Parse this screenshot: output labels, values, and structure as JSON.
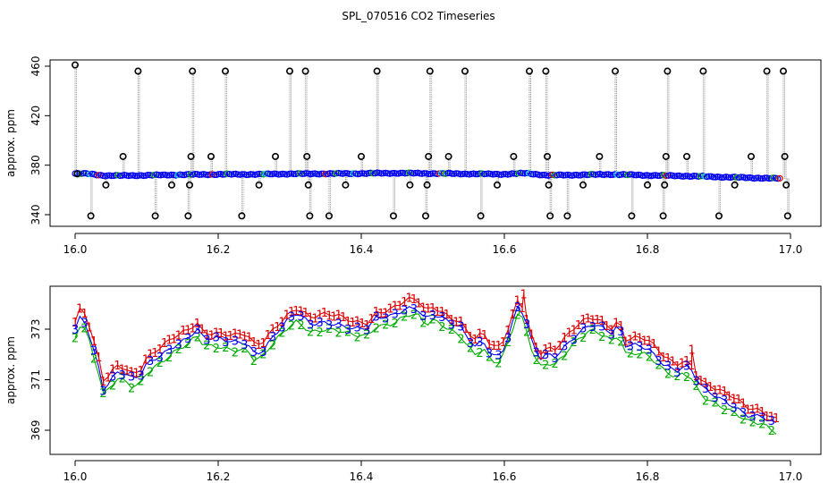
{
  "figure": {
    "title": "SPL_070516  CO2 Timeseries"
  },
  "chart_data": [
    {
      "type": "scatter",
      "title": "SPL_070516  CO2 Timeseries",
      "xlabel": "",
      "ylabel": "approx. ppm",
      "xlim": [
        16.0,
        17.0
      ],
      "ylim": [
        336,
        462
      ],
      "x_ticks": [
        "16.0",
        "16.2",
        "16.4",
        "16.6",
        "16.8",
        "17.0"
      ],
      "y_ticks": [
        "340",
        "380",
        "420",
        "460"
      ],
      "colors": {
        "series_1": "#dd0000",
        "series_2": "#00aa00",
        "series_3": "#0000ee",
        "highlight": "#00cccc",
        "outlier": "#000000",
        "trace": "#999999"
      },
      "baseline_knots": [
        [
          16.0,
          373.2
        ],
        [
          16.02,
          373.0
        ],
        [
          16.04,
          371.6
        ],
        [
          16.06,
          371.5
        ],
        [
          16.1,
          371.8
        ],
        [
          16.15,
          372.3
        ],
        [
          16.2,
          372.6
        ],
        [
          16.25,
          372.6
        ],
        [
          16.3,
          373.0
        ],
        [
          16.35,
          373.1
        ],
        [
          16.4,
          373.3
        ],
        [
          16.45,
          373.6
        ],
        [
          16.5,
          373.3
        ],
        [
          16.55,
          373.0
        ],
        [
          16.6,
          372.7
        ],
        [
          16.63,
          373.5
        ],
        [
          16.66,
          371.8
        ],
        [
          16.7,
          372.1
        ],
        [
          16.75,
          372.6
        ],
        [
          16.8,
          371.8
        ],
        [
          16.85,
          371.3
        ],
        [
          16.9,
          370.5
        ],
        [
          16.95,
          369.7
        ],
        [
          16.985,
          369.2
        ]
      ],
      "outliers": [
        [
          16.0,
          461
        ],
        [
          16.003,
          373
        ],
        [
          16.022,
          339
        ],
        [
          16.043,
          364
        ],
        [
          16.067,
          387
        ],
        [
          16.088,
          456
        ],
        [
          16.112,
          339
        ],
        [
          16.135,
          364
        ],
        [
          16.158,
          339
        ],
        [
          16.16,
          364
        ],
        [
          16.162,
          387
        ],
        [
          16.164,
          456
        ],
        [
          16.19,
          387
        ],
        [
          16.21,
          456
        ],
        [
          16.233,
          339
        ],
        [
          16.257,
          364
        ],
        [
          16.28,
          387
        ],
        [
          16.3,
          456
        ],
        [
          16.322,
          456
        ],
        [
          16.324,
          387
        ],
        [
          16.326,
          364
        ],
        [
          16.328,
          339
        ],
        [
          16.355,
          339
        ],
        [
          16.378,
          364
        ],
        [
          16.4,
          387
        ],
        [
          16.422,
          456
        ],
        [
          16.445,
          339
        ],
        [
          16.468,
          364
        ],
        [
          16.49,
          339
        ],
        [
          16.492,
          364
        ],
        [
          16.494,
          387
        ],
        [
          16.496,
          456
        ],
        [
          16.522,
          387
        ],
        [
          16.545,
          456
        ],
        [
          16.567,
          339
        ],
        [
          16.59,
          364
        ],
        [
          16.613,
          387
        ],
        [
          16.635,
          456
        ],
        [
          16.658,
          456
        ],
        [
          16.66,
          387
        ],
        [
          16.662,
          364
        ],
        [
          16.664,
          339
        ],
        [
          16.688,
          339
        ],
        [
          16.71,
          364
        ],
        [
          16.733,
          387
        ],
        [
          16.755,
          456
        ],
        [
          16.778,
          339
        ],
        [
          16.8,
          364
        ],
        [
          16.822,
          339
        ],
        [
          16.824,
          364
        ],
        [
          16.826,
          387
        ],
        [
          16.828,
          456
        ],
        [
          16.855,
          387
        ],
        [
          16.878,
          456
        ],
        [
          16.9,
          339
        ],
        [
          16.922,
          364
        ],
        [
          16.945,
          387
        ],
        [
          16.967,
          456
        ],
        [
          16.99,
          456
        ],
        [
          16.992,
          387
        ],
        [
          16.994,
          364
        ],
        [
          16.996,
          339
        ]
      ]
    },
    {
      "type": "scatter",
      "title": "",
      "xlabel": "",
      "ylabel": "approx. ppm",
      "xlim": [
        16.0,
        17.0
      ],
      "ylim": [
        368.0,
        374.8
      ],
      "x_ticks": [
        "16.0",
        "16.2",
        "16.4",
        "16.6",
        "16.8",
        "17.0"
      ],
      "y_ticks": [
        "369",
        "371",
        "373"
      ],
      "marker_labels": [
        "1",
        "2",
        "3"
      ],
      "colors": {
        "series_1": "#dd0000",
        "series_2": "#00aa00",
        "series_3": "#0000ee"
      },
      "series": [
        {
          "marker": "1",
          "color": "#dd0000",
          "offset": 0.28
        },
        {
          "marker": "2",
          "color": "#00aa00",
          "offset": -0.28
        },
        {
          "marker": "3",
          "color": "#0000ee",
          "offset": 0.0
        }
      ],
      "knots": [
        [
          16.0,
          373.0
        ],
        [
          16.005,
          373.5
        ],
        [
          16.015,
          373.3
        ],
        [
          16.025,
          372.3
        ],
        [
          16.035,
          371.3
        ],
        [
          16.04,
          370.6
        ],
        [
          16.05,
          371.0
        ],
        [
          16.06,
          371.3
        ],
        [
          16.07,
          371.2
        ],
        [
          16.08,
          371.0
        ],
        [
          16.09,
          371.1
        ],
        [
          16.1,
          371.6
        ],
        [
          16.12,
          372.0
        ],
        [
          16.14,
          372.4
        ],
        [
          16.16,
          372.7
        ],
        [
          16.17,
          373.0
        ],
        [
          16.18,
          372.6
        ],
        [
          16.2,
          372.6
        ],
        [
          16.22,
          372.5
        ],
        [
          16.24,
          372.5
        ],
        [
          16.25,
          372.1
        ],
        [
          16.26,
          372.1
        ],
        [
          16.28,
          372.8
        ],
        [
          16.3,
          373.4
        ],
        [
          16.31,
          373.6
        ],
        [
          16.33,
          373.2
        ],
        [
          16.35,
          373.3
        ],
        [
          16.37,
          373.2
        ],
        [
          16.39,
          373.0
        ],
        [
          16.41,
          373.0
        ],
        [
          16.42,
          373.4
        ],
        [
          16.44,
          373.5
        ],
        [
          16.46,
          373.8
        ],
        [
          16.47,
          373.9
        ],
        [
          16.48,
          373.8
        ],
        [
          16.49,
          373.4
        ],
        [
          16.5,
          373.6
        ],
        [
          16.52,
          373.3
        ],
        [
          16.54,
          373.0
        ],
        [
          16.55,
          372.6
        ],
        [
          16.56,
          372.3
        ],
        [
          16.57,
          372.6
        ],
        [
          16.58,
          372.1
        ],
        [
          16.59,
          371.9
        ],
        [
          16.6,
          372.3
        ],
        [
          16.61,
          373.1
        ],
        [
          16.62,
          374.0
        ],
        [
          16.63,
          373.3
        ],
        [
          16.64,
          372.3
        ],
        [
          16.65,
          371.8
        ],
        [
          16.66,
          372.0
        ],
        [
          16.67,
          371.9
        ],
        [
          16.68,
          372.2
        ],
        [
          16.7,
          372.8
        ],
        [
          16.72,
          373.2
        ],
        [
          16.74,
          373.0
        ],
        [
          16.75,
          372.8
        ],
        [
          16.76,
          373.1
        ],
        [
          16.77,
          372.3
        ],
        [
          16.78,
          372.4
        ],
        [
          16.8,
          372.3
        ],
        [
          16.82,
          371.7
        ],
        [
          16.84,
          371.3
        ],
        [
          16.85,
          371.5
        ],
        [
          16.86,
          371.4
        ],
        [
          16.87,
          370.9
        ],
        [
          16.88,
          370.6
        ],
        [
          16.9,
          370.3
        ],
        [
          16.92,
          370.0
        ],
        [
          16.94,
          369.6
        ],
        [
          16.96,
          369.5
        ],
        [
          16.98,
          369.2
        ]
      ],
      "spikes": [
        [
          16.862,
          372.2
        ],
        [
          16.627,
          374.4
        ]
      ]
    }
  ]
}
